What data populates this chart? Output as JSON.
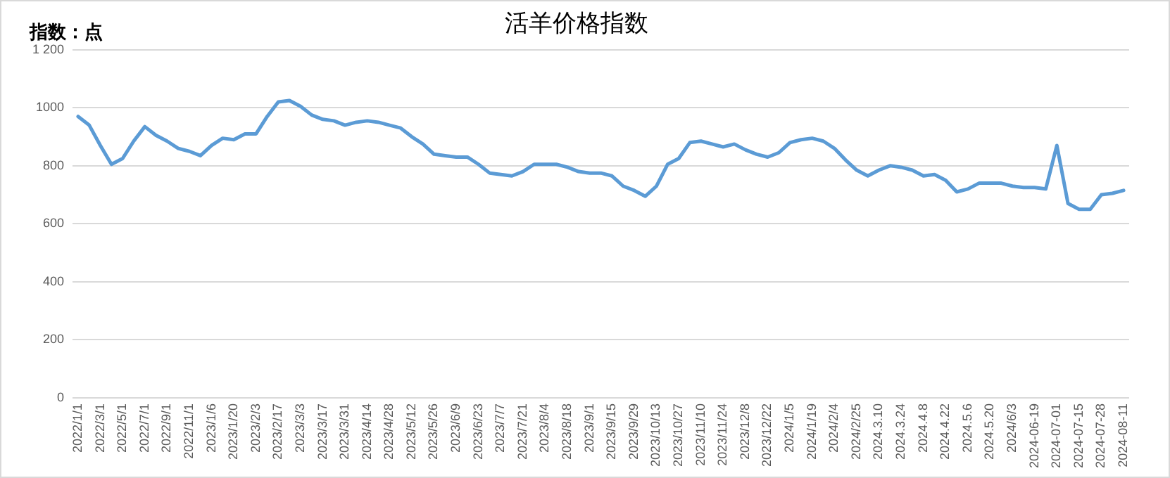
{
  "chart_data": {
    "type": "line",
    "title": "活羊价格指数",
    "ylabel": "指数：点",
    "categories": [
      "2022/1/1",
      null,
      "2022/3/1",
      null,
      "2022/5/1",
      null,
      "2022/7/1",
      null,
      "2022/9/1",
      null,
      "2022/11/1",
      null,
      "2023/1/6",
      null,
      "2023/1/20",
      null,
      "2023/2/3",
      null,
      "2023/2/17",
      null,
      "2023/3/3",
      null,
      "2023/3/17",
      null,
      "2023/3/31",
      null,
      "2023/4/14",
      null,
      "2023/4/28",
      null,
      "2023/5/12",
      null,
      "2023/5/26",
      null,
      "2023/6/9",
      null,
      "2023/6/23",
      null,
      "2023/7/7",
      null,
      "2023/7/21",
      null,
      "2023/8/4",
      null,
      "2023/8/18",
      null,
      "2023/9/1",
      null,
      "2023/9/15",
      null,
      "2023/9/29",
      null,
      "2023/10/13",
      null,
      "2023/10/27",
      null,
      "2023/11/10",
      null,
      "2023/11/24",
      null,
      "2023/12/8",
      null,
      "2023/12/22",
      null,
      "2024/1/5",
      null,
      "2024/1/19",
      null,
      "2024/2/4",
      null,
      "2024/2/25",
      null,
      "2024.3.10",
      null,
      "2024.3.24",
      null,
      "2024.4.8",
      null,
      "2024.4.22",
      null,
      "2024.5.6",
      null,
      "2024.5.20",
      null,
      "2024/6/3",
      null,
      "2024-06-19",
      null,
      "2024-07-01",
      null,
      "2024-07-15",
      null,
      "2024-07-28",
      null,
      "2024-08-11"
    ],
    "series": [
      {
        "color": "#5b9bd5",
        "values": [
          970,
          940,
          870,
          805,
          825,
          885,
          935,
          905,
          885,
          860,
          850,
          835,
          870,
          895,
          890,
          910,
          910,
          970,
          1020,
          1025,
          1005,
          975,
          960,
          955,
          940,
          950,
          955,
          950,
          940,
          930,
          900,
          875,
          840,
          835,
          830,
          830,
          805,
          775,
          770,
          765,
          780,
          805,
          805,
          805,
          795,
          780,
          775,
          775,
          765,
          730,
          715,
          695,
          730,
          805,
          825,
          880,
          885,
          875,
          865,
          875,
          855,
          840,
          830,
          845,
          880,
          890,
          895,
          885,
          860,
          820,
          785,
          765,
          785,
          800,
          795,
          785,
          765,
          770,
          750,
          710,
          720,
          740,
          740,
          740,
          730,
          725,
          725,
          720,
          870,
          670,
          650,
          650,
          700,
          705,
          715
        ]
      }
    ],
    "ylim": [
      0,
      1200
    ],
    "yticks": [
      0,
      200,
      400,
      600,
      800,
      1000,
      {
        "value": 1200,
        "label": "1 200"
      }
    ],
    "grid": "y",
    "legend": false,
    "marker": "none",
    "line_style": "solid"
  }
}
